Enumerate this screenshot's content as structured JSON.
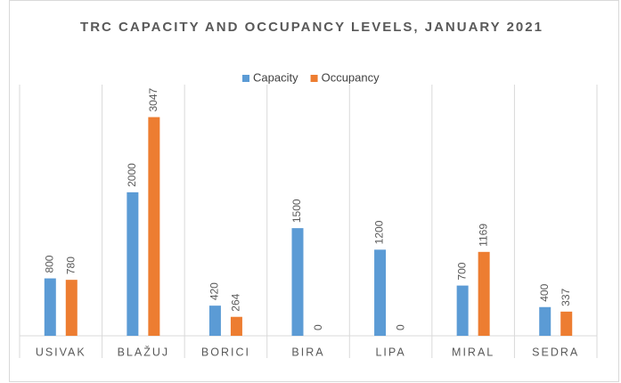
{
  "chart_data": {
    "type": "bar",
    "title": "TRC CAPACITY AND OCCUPANCY LEVELS, JANUARY 2021",
    "categories": [
      "USIVAK",
      "BLAŽUJ",
      "BORICI",
      "BIRA",
      "LIPA",
      "MIRAL",
      "SEDRA"
    ],
    "series": [
      {
        "name": "Capacity",
        "color": "#5b9bd5",
        "values": [
          800,
          2000,
          420,
          1500,
          1200,
          700,
          400
        ]
      },
      {
        "name": "Occupancy",
        "color": "#ed7d31",
        "values": [
          780,
          3047,
          264,
          0,
          0,
          1169,
          337
        ]
      }
    ],
    "ylim": [
      0,
      3500
    ],
    "legend": "top"
  }
}
